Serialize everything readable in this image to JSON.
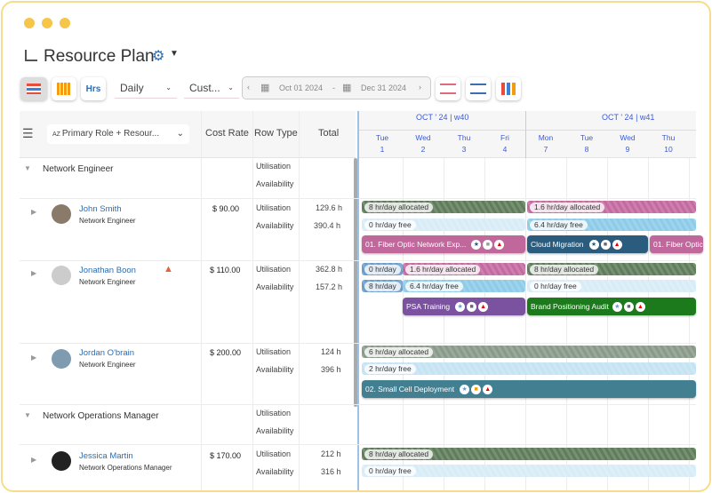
{
  "header": {
    "title": "Resource Plan"
  },
  "toolbar": {
    "view": "Daily",
    "filter": "Cust...",
    "date_from": "Oct 01 2024",
    "date_sep": "-",
    "date_to": "Dec 31 2024",
    "hrs_label": "Hrs"
  },
  "grid": {
    "group_by": "Primary Role + Resour...",
    "columns": [
      "Cost Rate",
      "Row Type",
      "Total"
    ],
    "weeks": [
      "OCT ' 24 | w40",
      "OCT ' 24 | w41"
    ],
    "days": [
      {
        "d": "Tue",
        "n": "1"
      },
      {
        "d": "Wed",
        "n": "2"
      },
      {
        "d": "Thu",
        "n": "3"
      },
      {
        "d": "Fri",
        "n": "4"
      },
      {
        "d": "Mon",
        "n": "7"
      },
      {
        "d": "Tue",
        "n": "8"
      },
      {
        "d": "Wed",
        "n": "9"
      },
      {
        "d": "Thu",
        "n": "10"
      }
    ]
  },
  "row_types": {
    "util": "Utilisation",
    "avail": "Availability"
  },
  "groups": [
    "Network Engineer",
    "Network Operations Manager"
  ],
  "resources": [
    {
      "name": "John Smith",
      "role": "Network Engineer",
      "rate": "$ 90.00",
      "util": "129.6 h",
      "avail": "390.4 h"
    },
    {
      "name": "Jonathan Boon",
      "role": "Network Engineer",
      "rate": "$ 110.00",
      "util": "362.8 h",
      "avail": "157.2 h"
    },
    {
      "name": "Jordan O'brain",
      "role": "Network Engineer",
      "rate": "$ 200.00",
      "util": "124 h",
      "avail": "396 h"
    },
    {
      "name": "Jessica Martin",
      "role": "Network Operations Manager",
      "rate": "$ 170.00",
      "util": "212 h",
      "avail": "316 h"
    }
  ],
  "bars": {
    "js_a1": "8 hr/day allocated",
    "js_a2": "1.6 hr/day allocated",
    "js_f1": "0 hr/day free",
    "js_f2": "6.4 hr/day free",
    "js_t1": "01. Fiber Optic Network Exp...",
    "js_t2": "Cloud Migration",
    "js_t3": "01. Fiber Optic",
    "jb_a0": "0 hr/day",
    "jb_a1": "1.6 hr/day allocated",
    "jb_a2": "8 hr/day allocated",
    "jb_f0": "8 hr/day",
    "jb_f1": "6.4 hr/day free",
    "jb_f2": "0 hr/day free",
    "jb_t1": "PSA Training",
    "jb_t2": "Brand Positioning Audit",
    "jo_a": "6 hr/day allocated",
    "jo_f": "2 hr/day free",
    "jo_t": "02. Small Cell Deployment",
    "jm_a": "8 hr/day allocated",
    "jm_f": "0 hr/day free"
  },
  "colors": {
    "allocated_full": "#5f7d5a",
    "allocated_partial": "#c46aa0",
    "free": "#d8ecf7",
    "free_partial": "#8ecbe8",
    "fiber": "#c0679c",
    "cloud": "#2b5c7e",
    "psa": "#7a52a0",
    "brand": "#1c7a1c",
    "smallcell": "#427f91",
    "accent": "#3b5bdb"
  }
}
